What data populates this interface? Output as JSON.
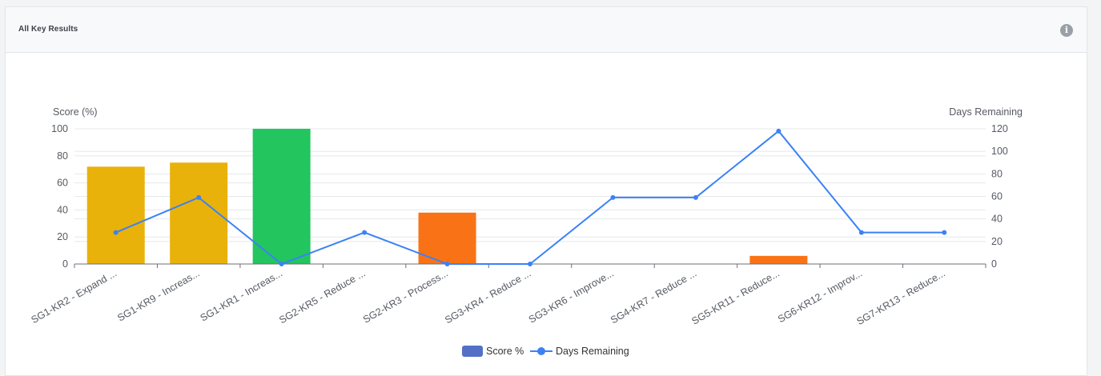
{
  "card": {
    "title": "All Key Results",
    "info_icon": "info-circle-icon",
    "info_glyph": "i"
  },
  "chart_data": {
    "type": "bar",
    "categories": [
      "SG1-KR2 - Expand ...",
      "SG1-KR9 - Increas...",
      "SG1-KR1 - Increas...",
      "SG2-KR5 - Reduce ...",
      "SG2-KR3 - Process...",
      "SG3-KR4 - Reduce ...",
      "SG3-KR6 - Improve...",
      "SG4-KR7 - Reduce ...",
      "SG5-KR11 - Reduce...",
      "SG6-KR12 - Improv...",
      "SG7-KR13 - Reduce..."
    ],
    "series": [
      {
        "name": "Score %",
        "type": "bar",
        "axis": "left",
        "legend_color": "#5470c6",
        "values": [
          72,
          75,
          100,
          0,
          38,
          0,
          0,
          0,
          6,
          0,
          0
        ],
        "bar_colors": [
          "#e8b20a",
          "#e8b20a",
          "#22c55e",
          "#f97316",
          "#f97316",
          "#f97316",
          "#f97316",
          "#f97316",
          "#f97316",
          "#f97316",
          "#f97316"
        ]
      },
      {
        "name": "Days Remaining",
        "type": "line",
        "axis": "right",
        "color": "#3b82f6",
        "values": [
          28,
          59,
          0,
          28,
          0,
          0,
          59,
          59,
          118,
          28,
          28
        ]
      }
    ],
    "ylabel": "Score (%)",
    "ylabel_right": "Days Remaining",
    "ylim": [
      0,
      100
    ],
    "yticks": [
      0,
      20,
      40,
      60,
      80,
      100
    ],
    "ylim_right": [
      0,
      120
    ],
    "yticks_right": [
      0,
      20,
      40,
      60,
      80,
      100,
      120
    ],
    "grid": true,
    "legend_position": "bottom-center"
  }
}
